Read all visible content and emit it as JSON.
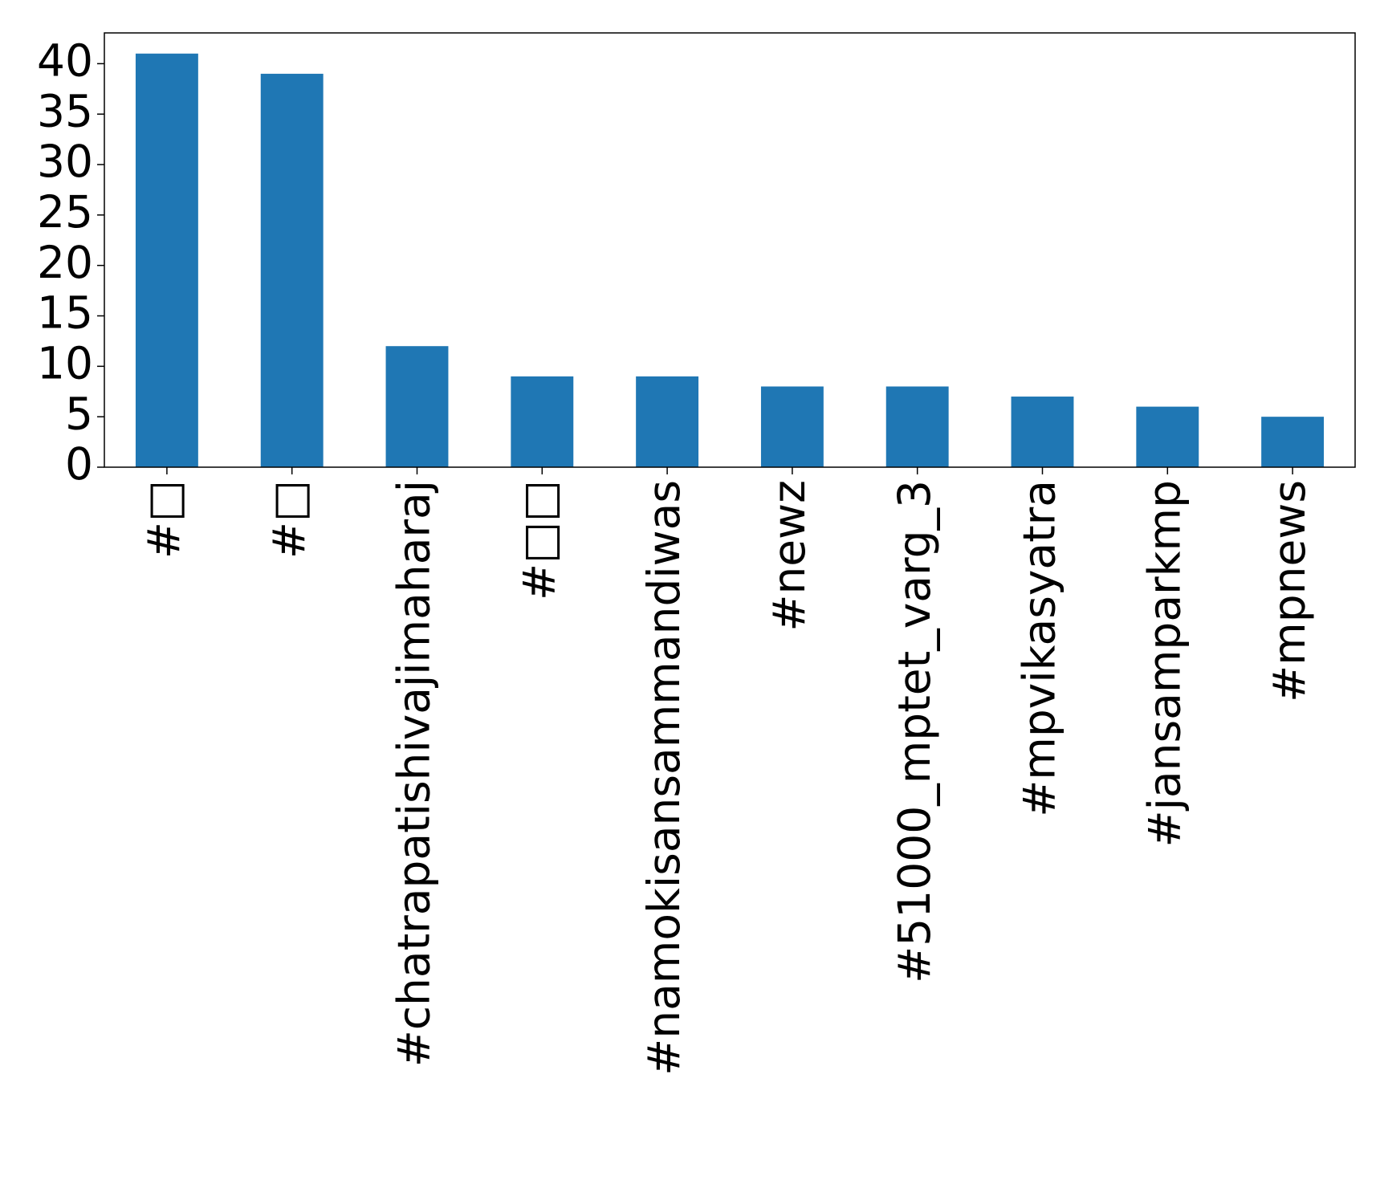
{
  "chart_data": {
    "type": "bar",
    "categories": [
      "#□",
      "#□",
      "#chatrapatishivajimaharaj",
      "#□□",
      "#namokisansammandiwas",
      "#newz",
      "#51000_mptet_varg_3",
      "#mpvikasyatra",
      "#jansamparkmp",
      "#mpnews"
    ],
    "values": [
      41,
      39,
      12,
      9,
      9,
      8,
      8,
      7,
      6,
      5
    ],
    "color": "#1f77b4",
    "ylim": [
      0,
      43.05
    ],
    "yticks": [
      0,
      5,
      10,
      15,
      20,
      25,
      30,
      35,
      40
    ],
    "grid": false
  }
}
